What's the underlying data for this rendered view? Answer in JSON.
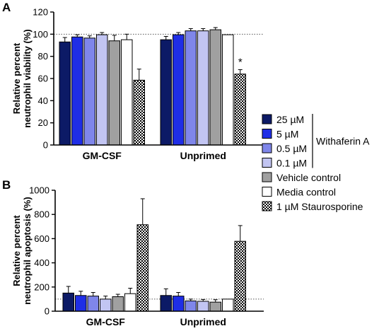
{
  "legend": {
    "items": [
      {
        "label": "25 µM",
        "fill": "#0c1a66",
        "pattern": "solid"
      },
      {
        "label": "5 µM",
        "fill": "#1f2ee6",
        "pattern": "solid"
      },
      {
        "label": "0.5 µM",
        "fill": "#7f86ea",
        "pattern": "solid"
      },
      {
        "label": "0.1 µM",
        "fill": "#c2c5f2",
        "pattern": "solid"
      },
      {
        "label": "Vehicle control",
        "fill": "#a0a0a0",
        "pattern": "solid"
      },
      {
        "label": "Media control",
        "fill": "#ffffff",
        "pattern": "solid"
      },
      {
        "label": "1 µM Staurosporine",
        "fill": "#ffffff",
        "pattern": "checker"
      }
    ],
    "bracket_label": "Withaferin A",
    "bracket_range": [
      0,
      3
    ],
    "placement": "right"
  },
  "chart_data": [
    {
      "type": "bar",
      "panel_label": "A",
      "ylabel": [
        "Relative percent",
        "neutrophil viability (%)"
      ],
      "ylim": [
        0,
        120
      ],
      "yticks": [
        0,
        20,
        40,
        60,
        80,
        100,
        120
      ],
      "reference_line": 100,
      "categories": [
        "GM-CSF",
        "Unprimed"
      ],
      "series": [
        {
          "values": [
            93,
            95
          ],
          "errors": [
            4,
            3
          ]
        },
        {
          "values": [
            97.5,
            99.5
          ],
          "errors": [
            2,
            2
          ]
        },
        {
          "values": [
            96.5,
            103
          ],
          "errors": [
            2,
            2
          ]
        },
        {
          "values": [
            99.5,
            103
          ],
          "errors": [
            2,
            2
          ]
        },
        {
          "values": [
            94,
            104
          ],
          "errors": [
            5,
            2
          ]
        },
        {
          "values": [
            95,
            99.5
          ],
          "errors": [
            5,
            0
          ]
        },
        {
          "values": [
            58.5,
            64
          ],
          "errors": [
            10,
            4
          ]
        }
      ],
      "annotations": [
        {
          "text": "*",
          "category": 1,
          "series": 6
        }
      ]
    },
    {
      "type": "bar",
      "panel_label": "B",
      "ylabel": [
        "Relative percent",
        "neutrophil apoptosis (%)"
      ],
      "ylim": [
        0,
        1000
      ],
      "yticks": [
        0,
        200,
        400,
        600,
        800,
        1000
      ],
      "reference_line": 100,
      "categories": [
        "GM-CSF",
        "Unprimed"
      ],
      "series": [
        {
          "values": [
            150,
            130
          ],
          "errors": [
            55,
            55
          ]
        },
        {
          "values": [
            130,
            125
          ],
          "errors": [
            35,
            30
          ]
        },
        {
          "values": [
            125,
            85
          ],
          "errors": [
            30,
            15
          ]
        },
        {
          "values": [
            100,
            82
          ],
          "errors": [
            25,
            15
          ]
        },
        {
          "values": [
            120,
            75
          ],
          "errors": [
            20,
            20
          ]
        },
        {
          "values": [
            145,
            100
          ],
          "errors": [
            45,
            0
          ]
        },
        {
          "values": [
            715,
            578
          ],
          "errors": [
            215,
            130
          ]
        }
      ],
      "annotations": []
    }
  ]
}
